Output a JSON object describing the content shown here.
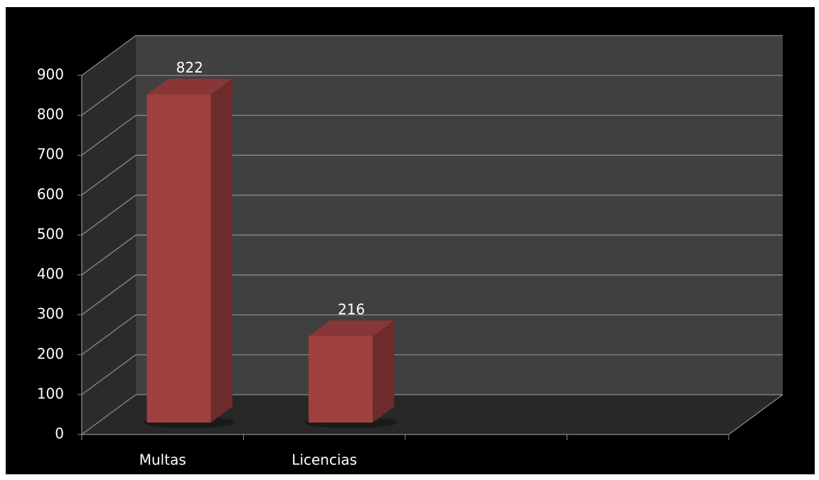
{
  "chart_data": {
    "type": "bar3d",
    "categories": [
      "Multas",
      "Licencias",
      null,
      null
    ],
    "values": [
      822,
      216,
      null,
      null
    ],
    "color": "#a0413f",
    "ylim": [
      0,
      900
    ],
    "yticks": [
      0,
      100,
      200,
      300,
      400,
      500,
      600,
      700,
      800,
      900
    ],
    "grid": true
  }
}
